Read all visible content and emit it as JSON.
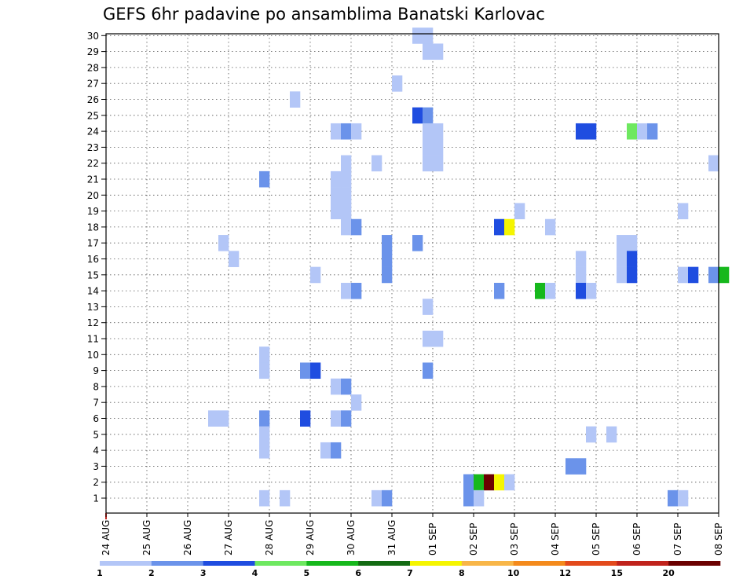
{
  "chart_data": {
    "type": "heatmap",
    "title": "GEFS 6hr padavine po ansamblima Banatski Karlovac",
    "x_tick_labels": [
      "24 AUG",
      "25 AUG",
      "26 AUG",
      "27 AUG",
      "28 AUG",
      "29 AUG",
      "30 AUG",
      "31 AUG",
      "01 SEP",
      "02 SEP",
      "03 SEP",
      "04 SEP",
      "05 SEP",
      "06 SEP",
      "07 SEP",
      "08 SEP"
    ],
    "y_tick_labels": [
      "1",
      "2",
      "3",
      "4",
      "5",
      "6",
      "7",
      "8",
      "9",
      "10",
      "11",
      "12",
      "13",
      "14",
      "15",
      "16",
      "17",
      "18",
      "19",
      "20",
      "21",
      "22",
      "23",
      "24",
      "25",
      "26",
      "27",
      "28",
      "29",
      "30"
    ],
    "x_steps_per_day": 4,
    "ylim": [
      1,
      30
    ],
    "grid": true,
    "colorbar": {
      "labels": [
        "1",
        "2",
        "3",
        "4",
        "5",
        "6",
        "7",
        "8",
        "10",
        "12",
        "15",
        "20"
      ],
      "colors": [
        "#b3c6f7",
        "#6b93ea",
        "#1f4de0",
        "#6ee860",
        "#16b81c",
        "#136b13",
        "#f5f500",
        "#f8b648",
        "#f48a1c",
        "#e34a1c",
        "#c0231c",
        "#6b0000"
      ]
    },
    "cells": [
      {
        "step": 30,
        "member": 30,
        "c": 0
      },
      {
        "step": 31,
        "member": 30,
        "c": 0
      },
      {
        "step": 31,
        "member": 29,
        "c": 0
      },
      {
        "step": 32,
        "member": 29,
        "c": 0
      },
      {
        "step": 28,
        "member": 27,
        "c": 0
      },
      {
        "step": 18,
        "member": 26,
        "c": 0
      },
      {
        "step": 30,
        "member": 25,
        "c": 2
      },
      {
        "step": 31,
        "member": 25,
        "c": 1
      },
      {
        "step": 22,
        "member": 24,
        "c": 0
      },
      {
        "step": 23,
        "member": 24,
        "c": 1
      },
      {
        "step": 24,
        "member": 24,
        "c": 0
      },
      {
        "step": 31,
        "member": 24,
        "c": 0
      },
      {
        "step": 32,
        "member": 24,
        "c": 0
      },
      {
        "step": 46,
        "member": 24,
        "c": 2
      },
      {
        "step": 47,
        "member": 24,
        "c": 2
      },
      {
        "step": 51,
        "member": 24,
        "c": 3
      },
      {
        "step": 52,
        "member": 24,
        "c": 0
      },
      {
        "step": 53,
        "member": 24,
        "c": 1
      },
      {
        "step": 31,
        "member": 23,
        "c": 0
      },
      {
        "step": 32,
        "member": 23,
        "c": 0
      },
      {
        "step": 31,
        "member": 22,
        "c": 0
      },
      {
        "step": 32,
        "member": 22,
        "c": 0
      },
      {
        "step": 23,
        "member": 22,
        "c": 0
      },
      {
        "step": 26,
        "member": 22,
        "c": 0
      },
      {
        "step": 59,
        "member": 22,
        "c": 0
      },
      {
        "step": 15,
        "member": 21,
        "c": 1
      },
      {
        "step": 22,
        "member": 21,
        "c": 0
      },
      {
        "step": 23,
        "member": 21,
        "c": 0
      },
      {
        "step": 22,
        "member": 20,
        "c": 0
      },
      {
        "step": 23,
        "member": 20,
        "c": 0
      },
      {
        "step": 22,
        "member": 19,
        "c": 0
      },
      {
        "step": 23,
        "member": 19,
        "c": 0
      },
      {
        "step": 40,
        "member": 19,
        "c": 0
      },
      {
        "step": 56,
        "member": 19,
        "c": 0
      },
      {
        "step": 23,
        "member": 18,
        "c": 0
      },
      {
        "step": 24,
        "member": 18,
        "c": 1
      },
      {
        "step": 38,
        "member": 18,
        "c": 2
      },
      {
        "step": 39,
        "member": 18,
        "c": 6
      },
      {
        "step": 43,
        "member": 18,
        "c": 0
      },
      {
        "step": 11,
        "member": 17,
        "c": 0
      },
      {
        "step": 27,
        "member": 17,
        "c": 1
      },
      {
        "step": 30,
        "member": 17,
        "c": 1
      },
      {
        "step": 50,
        "member": 17,
        "c": 0
      },
      {
        "step": 51,
        "member": 17,
        "c": 0
      },
      {
        "step": 12,
        "member": 16,
        "c": 0
      },
      {
        "step": 27,
        "member": 16,
        "c": 1
      },
      {
        "step": 46,
        "member": 16,
        "c": 0
      },
      {
        "step": 50,
        "member": 16,
        "c": 0
      },
      {
        "step": 51,
        "member": 16,
        "c": 2
      },
      {
        "step": 20,
        "member": 15,
        "c": 0
      },
      {
        "step": 27,
        "member": 15,
        "c": 1
      },
      {
        "step": 46,
        "member": 15,
        "c": 0
      },
      {
        "step": 50,
        "member": 15,
        "c": 0
      },
      {
        "step": 51,
        "member": 15,
        "c": 2
      },
      {
        "step": 56,
        "member": 15,
        "c": 0
      },
      {
        "step": 57,
        "member": 15,
        "c": 2
      },
      {
        "step": 59,
        "member": 15,
        "c": 1
      },
      {
        "step": 60,
        "member": 15,
        "c": 4
      },
      {
        "step": 23,
        "member": 14,
        "c": 0
      },
      {
        "step": 24,
        "member": 14,
        "c": 1
      },
      {
        "step": 38,
        "member": 14,
        "c": 1
      },
      {
        "step": 42,
        "member": 14,
        "c": 4
      },
      {
        "step": 43,
        "member": 14,
        "c": 0
      },
      {
        "step": 46,
        "member": 14,
        "c": 2
      },
      {
        "step": 47,
        "member": 14,
        "c": 0
      },
      {
        "step": 31,
        "member": 13,
        "c": 0
      },
      {
        "step": 31,
        "member": 11,
        "c": 0
      },
      {
        "step": 32,
        "member": 11,
        "c": 0
      },
      {
        "step": 15,
        "member": 10,
        "c": 0
      },
      {
        "step": 15,
        "member": 9,
        "c": 0
      },
      {
        "step": 19,
        "member": 9,
        "c": 1
      },
      {
        "step": 20,
        "member": 9,
        "c": 2
      },
      {
        "step": 31,
        "member": 9,
        "c": 1
      },
      {
        "step": 22,
        "member": 8,
        "c": 0
      },
      {
        "step": 23,
        "member": 8,
        "c": 1
      },
      {
        "step": 24,
        "member": 7,
        "c": 0
      },
      {
        "step": 10,
        "member": 6,
        "c": 0
      },
      {
        "step": 11,
        "member": 6,
        "c": 0
      },
      {
        "step": 15,
        "member": 6,
        "c": 1
      },
      {
        "step": 19,
        "member": 6,
        "c": 2
      },
      {
        "step": 22,
        "member": 6,
        "c": 0
      },
      {
        "step": 23,
        "member": 6,
        "c": 1
      },
      {
        "step": 15,
        "member": 5,
        "c": 0
      },
      {
        "step": 47,
        "member": 5,
        "c": 0
      },
      {
        "step": 49,
        "member": 5,
        "c": 0
      },
      {
        "step": 15,
        "member": 4,
        "c": 0
      },
      {
        "step": 21,
        "member": 4,
        "c": 0
      },
      {
        "step": 22,
        "member": 4,
        "c": 1
      },
      {
        "step": 45,
        "member": 3,
        "c": 1
      },
      {
        "step": 46,
        "member": 3,
        "c": 1
      },
      {
        "step": 35,
        "member": 2,
        "c": 1
      },
      {
        "step": 36,
        "member": 2,
        "c": 4
      },
      {
        "step": 37,
        "member": 2,
        "c": 11
      },
      {
        "step": 38,
        "member": 2,
        "c": 6
      },
      {
        "step": 39,
        "member": 2,
        "c": 0
      },
      {
        "step": 15,
        "member": 1,
        "c": 0
      },
      {
        "step": 17,
        "member": 1,
        "c": 0
      },
      {
        "step": 26,
        "member": 1,
        "c": 0
      },
      {
        "step": 27,
        "member": 1,
        "c": 1
      },
      {
        "step": 35,
        "member": 1,
        "c": 1
      },
      {
        "step": 36,
        "member": 1,
        "c": 0
      },
      {
        "step": 55,
        "member": 1,
        "c": 1
      },
      {
        "step": 56,
        "member": 1,
        "c": 0
      }
    ]
  }
}
